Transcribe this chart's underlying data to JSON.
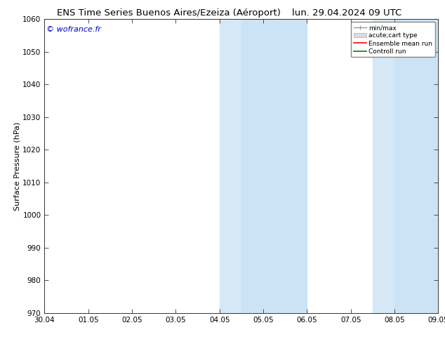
{
  "title_left": "ENS Time Series Buenos Aires/Ezeiza (Aéroport)",
  "title_right": "lun. 29.04.2024 09 UTC",
  "ylabel": "Surface Pressure (hPa)",
  "watermark": "© wofrance.fr",
  "watermark_color": "#0000cc",
  "ylim": [
    970,
    1060
  ],
  "yticks": [
    970,
    980,
    990,
    1000,
    1010,
    1020,
    1030,
    1040,
    1050,
    1060
  ],
  "xtick_labels": [
    "30.04",
    "01.05",
    "02.05",
    "03.05",
    "04.05",
    "05.05",
    "06.05",
    "07.05",
    "08.05",
    "09.05"
  ],
  "xtick_positions": [
    0,
    1,
    2,
    3,
    4,
    5,
    6,
    7,
    8,
    9
  ],
  "shaded_regions": [
    {
      "x_start": 4.0,
      "x_end": 4.5,
      "color": "#d6e8f5"
    },
    {
      "x_start": 4.5,
      "x_end": 5.0,
      "color": "#cce3f5"
    },
    {
      "x_start": 5.0,
      "x_end": 6.0,
      "color": "#cce3f5"
    },
    {
      "x_start": 7.5,
      "x_end": 8.0,
      "color": "#d6e8f5"
    },
    {
      "x_start": 8.0,
      "x_end": 8.5,
      "color": "#cce3f5"
    },
    {
      "x_start": 8.5,
      "x_end": 9.0,
      "color": "#cce3f5"
    }
  ],
  "legend_entries": [
    {
      "label": "min/max",
      "color": "#999999",
      "linestyle": "-",
      "linewidth": 1
    },
    {
      "label": "acute;cart type",
      "color": "#cccccc",
      "linestyle": "-",
      "linewidth": 6
    },
    {
      "label": "Ensemble mean run",
      "color": "#ff0000",
      "linestyle": "-",
      "linewidth": 1.2
    },
    {
      "label": "Controll run",
      "color": "#008000",
      "linestyle": "-",
      "linewidth": 1.2
    }
  ],
  "background_color": "#ffffff",
  "grid_color": "#cccccc",
  "title_fontsize": 9.5,
  "axis_label_fontsize": 8,
  "tick_fontsize": 7.5,
  "watermark_fontsize": 8
}
